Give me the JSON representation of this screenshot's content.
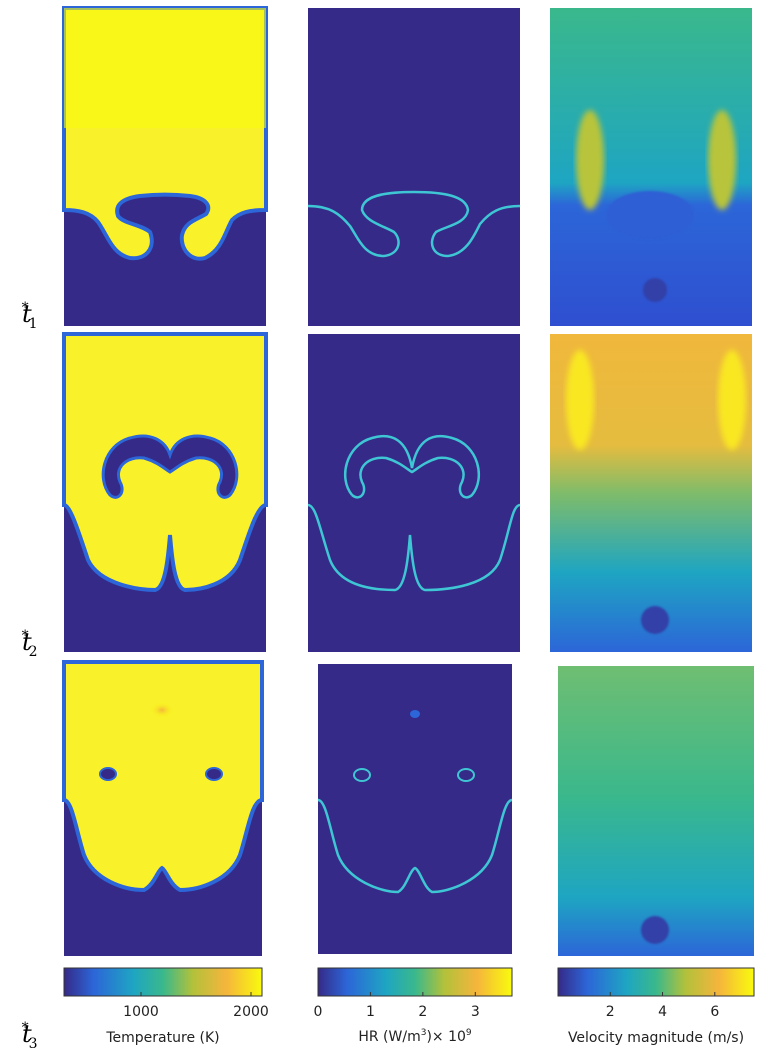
{
  "row_labels": [
    {
      "base": "t",
      "sup": "*",
      "sub": "1"
    },
    {
      "base": "t",
      "sup": "*",
      "sub": "2"
    },
    {
      "base": "t",
      "sup": "*",
      "sub": "3"
    }
  ],
  "colorbars": [
    {
      "name": "temperature",
      "title_pre": "Temperature (K)",
      "title_sup": "",
      "title_post": "",
      "range": [
        300,
        2100
      ],
      "ticks": [
        {
          "v": 1000,
          "label": "1000"
        },
        {
          "v": 2000,
          "label": "2000"
        }
      ]
    },
    {
      "name": "heat-release",
      "title_pre": "HR (W/m",
      "title_sup": "3",
      "title_post": ")× 10",
      "title_sup2": "9",
      "range": [
        0,
        3.7
      ],
      "ticks": [
        {
          "v": 0,
          "label": "0"
        },
        {
          "v": 1,
          "label": "1"
        },
        {
          "v": 2,
          "label": "2"
        },
        {
          "v": 3,
          "label": "3"
        }
      ]
    },
    {
      "name": "velocity",
      "title_pre": "Velocity magnitude (m/s)",
      "title_sup": "",
      "title_post": "",
      "range": [
        0,
        7.5
      ],
      "ticks": [
        {
          "v": 2,
          "label": "2"
        },
        {
          "v": 4,
          "label": "4"
        },
        {
          "v": 6,
          "label": "6"
        }
      ]
    }
  ],
  "colors": {
    "low": "#352a87",
    "mid_blue": "#2c66d8",
    "teal": "#1ea5c2",
    "green": "#3ab88c",
    "yellowgreen": "#b2c13b",
    "orange": "#f5b53c",
    "high": "#f9fb0e"
  }
}
